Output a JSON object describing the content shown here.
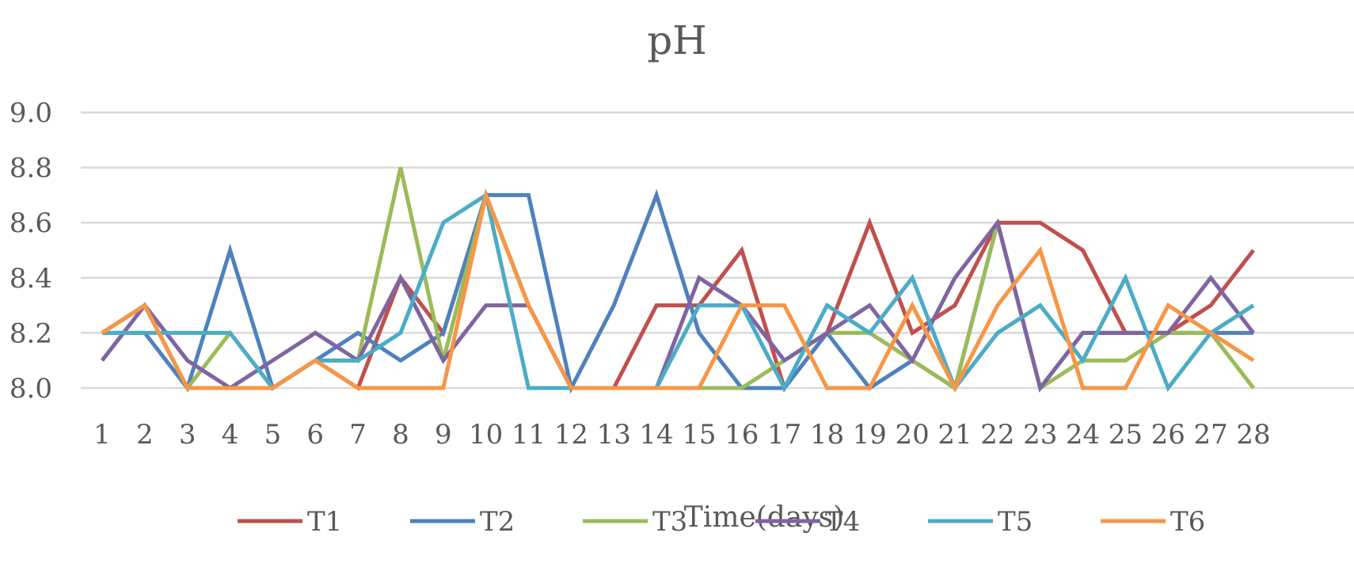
{
  "chart_data": {
    "type": "line",
    "title": "pH",
    "xlabel": "Time(days)",
    "ylabel": "",
    "ylim": [
      8.0,
      9.0
    ],
    "yticks": [
      "8.0",
      "8.2",
      "8.4",
      "8.6",
      "8.8",
      "9.0"
    ],
    "categories": [
      "1",
      "2",
      "3",
      "4",
      "5",
      "6",
      "7",
      "8",
      "9",
      "10",
      "11",
      "12",
      "13",
      "14",
      "15",
      "16",
      "17",
      "18",
      "19",
      "20",
      "21",
      "22",
      "23",
      "24",
      "25",
      "26",
      "27",
      "28"
    ],
    "grid": true,
    "legend_position": "bottom",
    "series": [
      {
        "name": "T1",
        "color": "#c0504d",
        "values": [
          8.2,
          8.3,
          8.0,
          8.0,
          8.0,
          8.1,
          8.0,
          8.4,
          8.2,
          8.7,
          8.3,
          8.0,
          8.0,
          8.3,
          8.3,
          8.5,
          8.0,
          8.2,
          8.6,
          8.2,
          8.3,
          8.6,
          8.6,
          8.5,
          8.2,
          8.2,
          8.3,
          8.5
        ]
      },
      {
        "name": "T2",
        "color": "#4f81bd",
        "values": [
          8.2,
          8.2,
          8.0,
          8.5,
          8.0,
          8.1,
          8.2,
          8.1,
          8.2,
          8.7,
          8.7,
          8.0,
          8.3,
          8.7,
          8.2,
          8.0,
          8.0,
          8.2,
          8.0,
          8.1,
          8.0,
          8.6,
          8.0,
          8.2,
          8.2,
          8.2,
          8.2,
          8.2
        ]
      },
      {
        "name": "T3",
        "color": "#9bbb59",
        "values": [
          8.2,
          8.3,
          8.0,
          8.2,
          8.0,
          8.1,
          8.1,
          8.8,
          8.1,
          8.7,
          8.3,
          8.0,
          8.0,
          8.0,
          8.0,
          8.0,
          8.1,
          8.2,
          8.2,
          8.1,
          8.0,
          8.6,
          8.0,
          8.1,
          8.1,
          8.2,
          8.2,
          8.0
        ]
      },
      {
        "name": "T4",
        "color": "#8064a2",
        "values": [
          8.1,
          8.3,
          8.1,
          8.0,
          8.1,
          8.2,
          8.1,
          8.4,
          8.1,
          8.3,
          8.3,
          8.0,
          8.0,
          8.0,
          8.4,
          8.3,
          8.1,
          8.2,
          8.3,
          8.1,
          8.4,
          8.6,
          8.0,
          8.2,
          8.2,
          8.2,
          8.4,
          8.2
        ]
      },
      {
        "name": "T5",
        "color": "#4bacc6",
        "values": [
          8.2,
          8.2,
          8.2,
          8.2,
          8.0,
          8.1,
          8.1,
          8.2,
          8.6,
          8.7,
          8.0,
          8.0,
          8.0,
          8.0,
          8.3,
          8.3,
          8.0,
          8.3,
          8.2,
          8.4,
          8.0,
          8.2,
          8.3,
          8.1,
          8.4,
          8.0,
          8.2,
          8.3
        ]
      },
      {
        "name": "T6",
        "color": "#f79646",
        "values": [
          8.2,
          8.3,
          8.0,
          8.0,
          8.0,
          8.1,
          8.0,
          8.0,
          8.0,
          8.7,
          8.3,
          8.0,
          8.0,
          8.0,
          8.0,
          8.3,
          8.3,
          8.0,
          8.0,
          8.3,
          8.0,
          8.3,
          8.5,
          8.0,
          8.0,
          8.3,
          8.2,
          8.1
        ]
      }
    ]
  }
}
